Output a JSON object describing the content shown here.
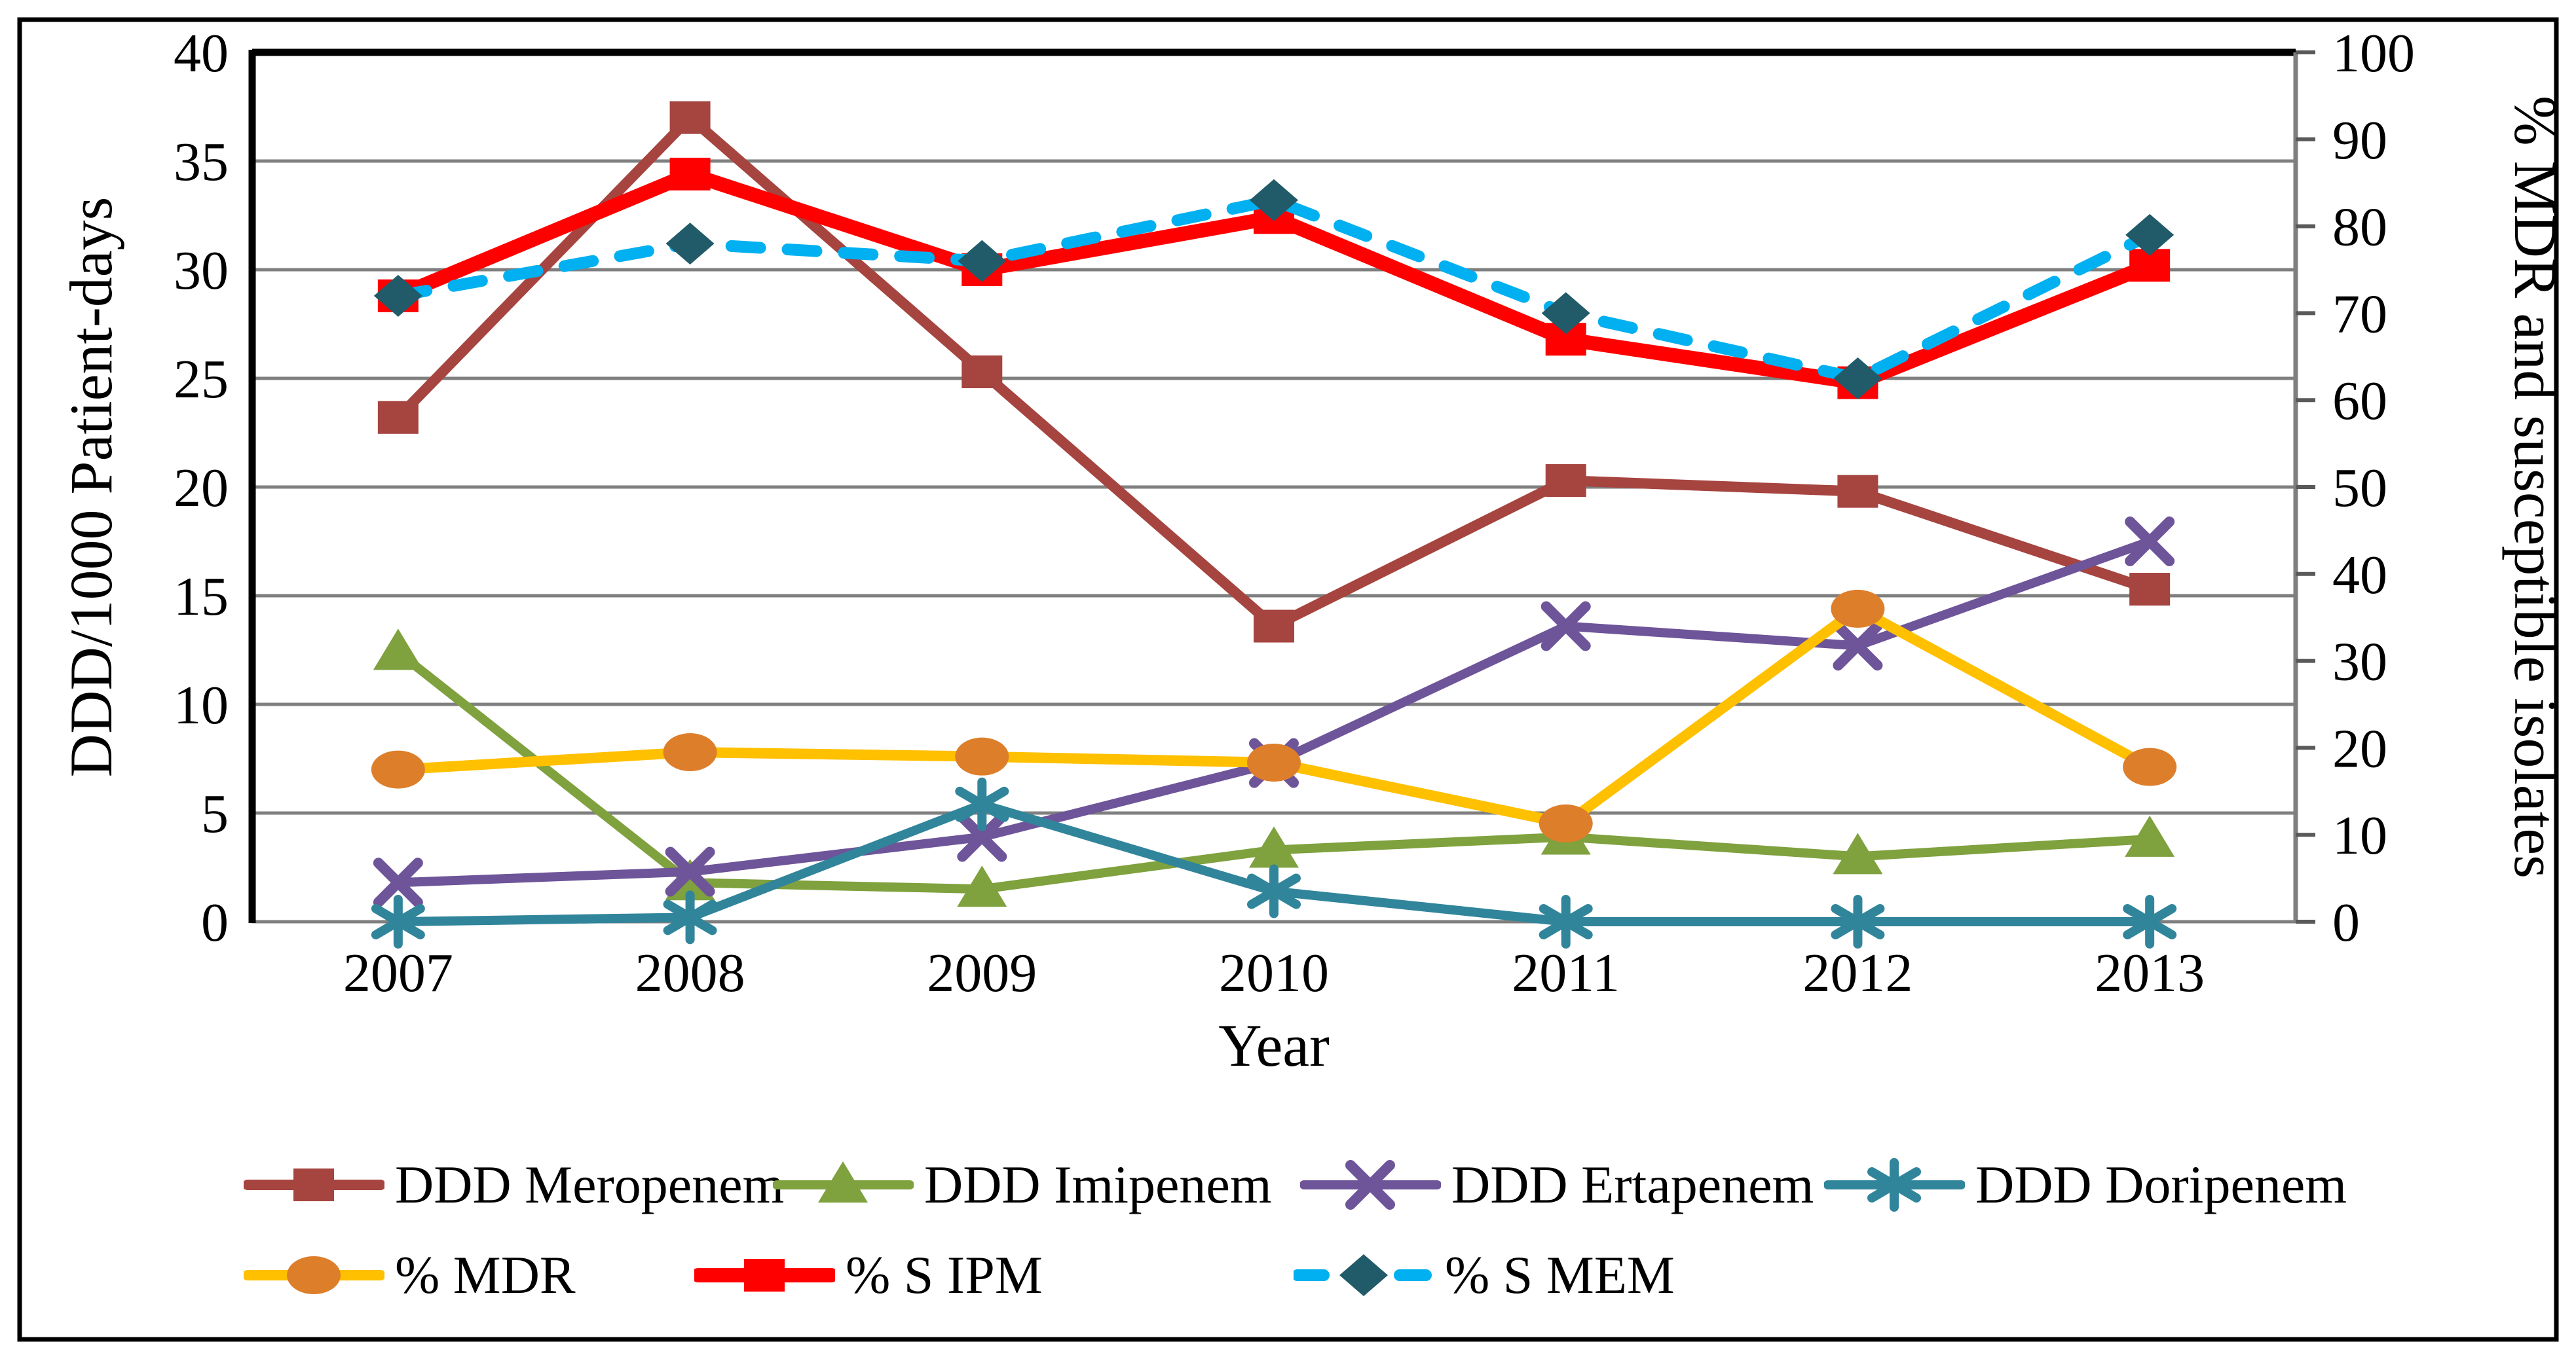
{
  "figure": {
    "background_color": "#FFFFFF",
    "border_color": "#000000",
    "gridline_color": "#7F7F7F"
  },
  "chart_data": {
    "type": "line",
    "title": "",
    "xlabel": "Year",
    "ylabel_left": "DDD/1000 Patient-days",
    "ylabel_right": "% MDR and susceptible isolates",
    "categories": [
      "2007",
      "2008",
      "2009",
      "2010",
      "2011",
      "2012",
      "2013"
    ],
    "left_axis": {
      "min": 0,
      "max": 40,
      "step": 5,
      "tick_labels": [
        "0",
        "5",
        "10",
        "15",
        "20",
        "25",
        "30",
        "35",
        "40"
      ]
    },
    "right_axis": {
      "min": 0,
      "max": 100,
      "step": 10,
      "tick_labels": [
        "0",
        "10",
        "20",
        "30",
        "40",
        "50",
        "60",
        "70",
        "80",
        "90",
        "100"
      ]
    },
    "grid": true,
    "legend_position": "bottom",
    "series": [
      {
        "name": "DDD Meropenem",
        "axis": "left",
        "color": "#A64440",
        "marker": "square",
        "marker_color": "#A64440",
        "dashed": false,
        "line_width": 16,
        "values": [
          23.2,
          37.0,
          25.3,
          13.6,
          20.3,
          19.8,
          15.3
        ]
      },
      {
        "name": "DDD Imipenem",
        "axis": "left",
        "color": "#7FA13E",
        "marker": "triangle",
        "marker_color": "#7FA13E",
        "dashed": false,
        "line_width": 14,
        "values": [
          12.4,
          1.8,
          1.5,
          3.3,
          3.9,
          3.0,
          3.8
        ]
      },
      {
        "name": "DDD Ertapenem",
        "axis": "left",
        "color": "#6E5499",
        "marker": "x",
        "marker_color": "#6E5499",
        "dashed": false,
        "line_width": 14,
        "values": [
          1.8,
          2.3,
          3.9,
          7.3,
          13.6,
          12.7,
          17.5
        ]
      },
      {
        "name": "DDD Doripenem",
        "axis": "left",
        "color": "#31859B",
        "marker": "asterisk",
        "marker_color": "#31859B",
        "dashed": false,
        "line_width": 14,
        "values": [
          0.0,
          0.2,
          5.4,
          1.4,
          0.0,
          0.0,
          0.0
        ]
      },
      {
        "name": "% MDR",
        "axis": "right",
        "color": "#FFC000",
        "marker": "circle",
        "marker_color": "#DD7E2B",
        "dashed": false,
        "line_width": 16,
        "values": [
          17.5,
          19.5,
          19.0,
          18.3,
          11.3,
          36.0,
          17.8
        ]
      },
      {
        "name": "% S IPM",
        "axis": "right",
        "color": "#FF0000",
        "marker": "square",
        "marker_color": "#FF0000",
        "dashed": false,
        "line_width": 22,
        "values": [
          72,
          86,
          75,
          81,
          67,
          62,
          75.5
        ]
      },
      {
        "name": "% S MEM",
        "axis": "right",
        "color": "#00B0F0",
        "marker": "diamond",
        "marker_color": "#215A68",
        "dashed": true,
        "line_width": 18,
        "values": [
          72,
          78,
          76,
          83,
          70,
          62.5,
          79
        ]
      }
    ]
  }
}
